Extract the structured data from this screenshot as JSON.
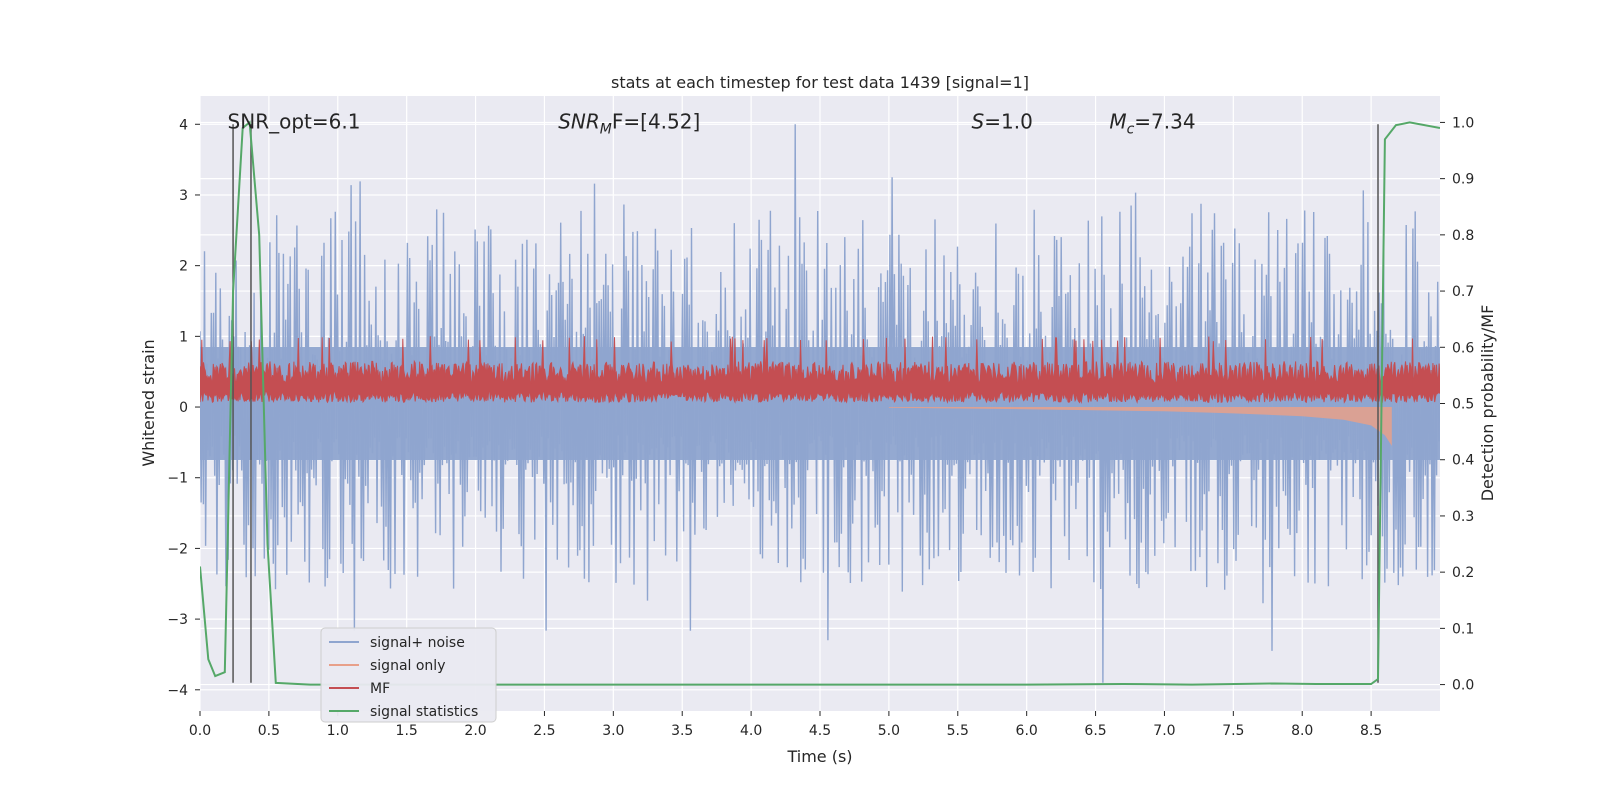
{
  "chart_data": {
    "type": "line",
    "title": "stats at each timestep for test data 1439 [signal=1]",
    "xlabel": "Time (s)",
    "ylabel": "Whitened strain",
    "y2label": "Detection probability/MF",
    "xlim": [
      0.0,
      9.0
    ],
    "ylim": [
      -4.3,
      4.4
    ],
    "y2lim": [
      -0.047,
      1.047
    ],
    "x_ticks": [
      0.0,
      0.5,
      1.0,
      1.5,
      2.0,
      2.5,
      3.0,
      3.5,
      4.0,
      4.5,
      5.0,
      5.5,
      6.0,
      6.5,
      7.0,
      7.5,
      8.0,
      8.5
    ],
    "x_tick_labels": [
      "0.0",
      "0.5",
      "1.0",
      "1.5",
      "2.0",
      "2.5",
      "3.0",
      "3.5",
      "4.0",
      "4.5",
      "5.0",
      "5.5",
      "6.0",
      "6.5",
      "7.0",
      "7.5",
      "8.0",
      "8.5"
    ],
    "y_ticks": [
      -4,
      -3,
      -2,
      -1,
      0,
      1,
      2,
      3,
      4
    ],
    "y_tick_labels": [
      "−4",
      "−3",
      "−2",
      "−1",
      "0",
      "1",
      "2",
      "3",
      "4"
    ],
    "y2_ticks": [
      0.0,
      0.1,
      0.2,
      0.3,
      0.4,
      0.5,
      0.6,
      0.7,
      0.8,
      0.9,
      1.0
    ],
    "y2_tick_labels": [
      "0.0",
      "0.1",
      "0.2",
      "0.3",
      "0.4",
      "0.5",
      "0.6",
      "0.7",
      "0.8",
      "0.9",
      "1.0"
    ],
    "grid": true,
    "legend_position": "bottom-left",
    "annotations": [
      {
        "text": "SNR_opt=6.1",
        "x": 0.2,
        "y": 4.05
      },
      {
        "main": "SNR",
        "sub": "M",
        "rest": "F=[4.52]",
        "x": 2.6,
        "y": 4.05
      },
      {
        "main": "S",
        "sub": "",
        "rest": "=1.0",
        "x": 5.6,
        "y": 4.05
      },
      {
        "main": "M",
        "sub": "c",
        "rest": "=7.34",
        "x": 6.6,
        "y": 4.05
      }
    ],
    "vertical_markers": [
      {
        "x": 0.24,
        "y_from": -3.9,
        "y_to": 4.0
      },
      {
        "x": 0.37,
        "y_from": -3.9,
        "y_to": 4.0
      },
      {
        "x": 8.55,
        "y_from": -3.9,
        "y_to": 4.0
      }
    ],
    "series": [
      {
        "name": "signal+ noise",
        "color": "#8fa5cf",
        "axis": "left",
        "style": "noise-band",
        "x_range": [
          0.0,
          9.0
        ],
        "band_upper": [
          0.0,
          2.0
        ],
        "band_lower": [
          -2.0,
          0.0
        ],
        "max_peak": 4.0,
        "min_peak": -3.9
      },
      {
        "name": "signal only",
        "color": "#e8a08a",
        "axis": "left",
        "style": "chirp",
        "x": [
          5.0,
          6.0,
          7.0,
          7.5,
          8.0,
          8.3,
          8.5,
          8.6,
          8.65
        ],
        "envelope": [
          0.01,
          0.03,
          0.06,
          0.09,
          0.13,
          0.18,
          0.26,
          0.4,
          0.55
        ]
      },
      {
        "name": "MF",
        "color": "#c44e52",
        "axis": "right",
        "style": "mf-band",
        "x_range": [
          0.0,
          9.0
        ],
        "band": [
          0.5,
          0.6
        ],
        "max_peak": 0.62
      },
      {
        "name": "signal statistics",
        "color": "#55a868",
        "axis": "right",
        "x": [
          0.0,
          0.06,
          0.11,
          0.18,
          0.24,
          0.31,
          0.36,
          0.43,
          0.49,
          0.55,
          0.8,
          1.5,
          3.0,
          5.0,
          6.0,
          6.7,
          7.2,
          7.8,
          8.1,
          8.5,
          8.55,
          8.6,
          8.68,
          8.78,
          9.0
        ],
        "y": [
          0.21,
          0.045,
          0.015,
          0.022,
          0.7,
          0.99,
          1.0,
          0.8,
          0.25,
          0.003,
          0.0,
          0.0,
          0.0,
          0.0,
          0.0,
          0.001,
          0.0,
          0.002,
          0.001,
          0.001,
          0.01,
          0.97,
          0.995,
          1.0,
          0.99
        ]
      }
    ]
  }
}
